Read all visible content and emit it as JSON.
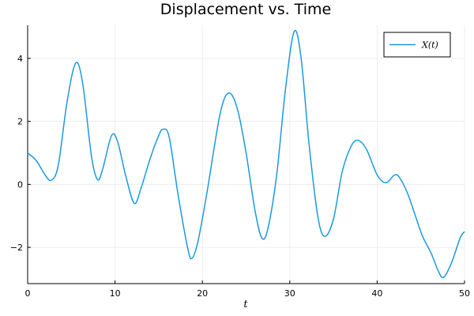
{
  "chart_data": {
    "type": "line",
    "title": "Displacement vs. Time",
    "xlabel": "t",
    "ylabel": "",
    "xlim": [
      0,
      50
    ],
    "ylim": [
      -3.15,
      5.05
    ],
    "x_ticks": [
      0,
      10,
      20,
      30,
      40,
      50
    ],
    "y_ticks": [
      -2,
      0,
      2,
      4
    ],
    "y_tick_labels": [
      "−2",
      "0",
      "2",
      "4"
    ],
    "grid": true,
    "legend_position": "top-right",
    "series": [
      {
        "name": "X(t)",
        "color": "#1a9ae0",
        "points": [
          [
            0,
            1.0
          ],
          [
            1.0,
            0.75
          ],
          [
            2.0,
            0.3
          ],
          [
            2.7,
            0.13
          ],
          [
            3.5,
            0.6
          ],
          [
            4.5,
            2.6
          ],
          [
            5.5,
            3.85
          ],
          [
            6.3,
            3.2
          ],
          [
            7.3,
            0.9
          ],
          [
            8.0,
            0.15
          ],
          [
            8.6,
            0.5
          ],
          [
            9.6,
            1.55
          ],
          [
            10.3,
            1.35
          ],
          [
            11.2,
            0.3
          ],
          [
            12.2,
            -0.6
          ],
          [
            13.0,
            -0.1
          ],
          [
            14.0,
            0.8
          ],
          [
            15.0,
            1.55
          ],
          [
            15.5,
            1.75
          ],
          [
            16.2,
            1.5
          ],
          [
            17.2,
            -0.3
          ],
          [
            18.3,
            -2.0
          ],
          [
            18.8,
            -2.35
          ],
          [
            19.5,
            -1.8
          ],
          [
            20.5,
            -0.3
          ],
          [
            22.0,
            2.2
          ],
          [
            23.0,
            2.9
          ],
          [
            24.0,
            2.4
          ],
          [
            25.0,
            1.0
          ],
          [
            26.0,
            -0.8
          ],
          [
            26.8,
            -1.7
          ],
          [
            27.5,
            -1.4
          ],
          [
            28.5,
            0.3
          ],
          [
            29.5,
            3.0
          ],
          [
            30.5,
            4.85
          ],
          [
            31.3,
            4.0
          ],
          [
            32.2,
            1.3
          ],
          [
            33.2,
            -1.0
          ],
          [
            34.0,
            -1.65
          ],
          [
            35.0,
            -1.1
          ],
          [
            36.0,
            0.4
          ],
          [
            37.0,
            1.2
          ],
          [
            37.8,
            1.4
          ],
          [
            38.8,
            1.1
          ],
          [
            40.0,
            0.3
          ],
          [
            41.0,
            0.05
          ],
          [
            42.0,
            0.3
          ],
          [
            42.6,
            0.2
          ],
          [
            43.5,
            -0.3
          ],
          [
            44.5,
            -1.1
          ],
          [
            45.2,
            -1.65
          ],
          [
            46.2,
            -2.2
          ],
          [
            47.0,
            -2.75
          ],
          [
            47.6,
            -2.95
          ],
          [
            48.5,
            -2.5
          ],
          [
            49.5,
            -1.7
          ],
          [
            50.0,
            -1.5
          ]
        ]
      }
    ]
  }
}
